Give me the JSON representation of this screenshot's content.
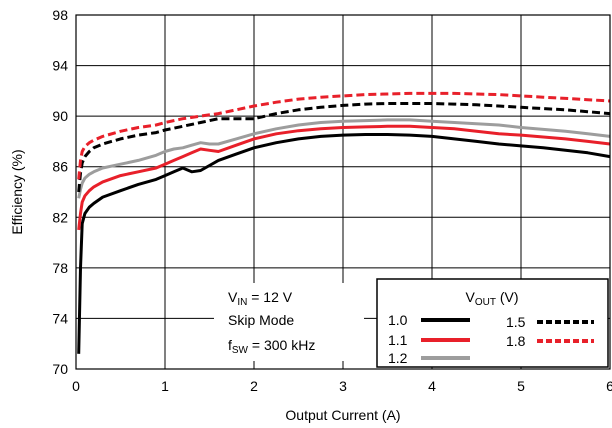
{
  "chart_data": {
    "type": "line",
    "xlabel": "Output Current (A)",
    "ylabel": "Efficiency (%)",
    "xlim": [
      0,
      6
    ],
    "ylim": [
      70,
      98
    ],
    "x_ticks": [
      "0",
      "1",
      "2",
      "3",
      "4",
      "5",
      "6"
    ],
    "y_ticks": [
      "70",
      "74",
      "78",
      "82",
      "86",
      "90",
      "94",
      "98"
    ],
    "grid": true,
    "annotation": {
      "vin": {
        "main": "V",
        "sub": "IN",
        "rest": " = 12 V"
      },
      "mode": "Skip Mode",
      "fsw": {
        "main": "f",
        "sub": "SW",
        "rest": " = 300 kHz"
      }
    },
    "legend": {
      "placement": "bottom-right",
      "title": {
        "main": "V",
        "sub": "OUT",
        "rest": " (V)"
      }
    },
    "series": [
      {
        "name": "1.0",
        "color": "#000000",
        "dash": "solid",
        "points": [
          [
            0.03,
            71.2
          ],
          [
            0.05,
            78
          ],
          [
            0.07,
            81.5
          ],
          [
            0.1,
            82.3
          ],
          [
            0.15,
            82.8
          ],
          [
            0.2,
            83.1
          ],
          [
            0.3,
            83.6
          ],
          [
            0.5,
            84.1
          ],
          [
            0.7,
            84.6
          ],
          [
            0.9,
            85.0
          ],
          [
            1.0,
            85.3
          ],
          [
            1.1,
            85.6
          ],
          [
            1.2,
            85.9
          ],
          [
            1.3,
            85.6
          ],
          [
            1.4,
            85.7
          ],
          [
            1.5,
            86.1
          ],
          [
            1.6,
            86.5
          ],
          [
            1.8,
            87.0
          ],
          [
            2.0,
            87.5
          ],
          [
            2.25,
            87.9
          ],
          [
            2.5,
            88.2
          ],
          [
            2.75,
            88.4
          ],
          [
            3.0,
            88.5
          ],
          [
            3.25,
            88.55
          ],
          [
            3.5,
            88.55
          ],
          [
            3.75,
            88.5
          ],
          [
            4.0,
            88.4
          ],
          [
            4.25,
            88.2
          ],
          [
            4.5,
            88.0
          ],
          [
            4.75,
            87.8
          ],
          [
            5.0,
            87.65
          ],
          [
            5.25,
            87.5
          ],
          [
            5.5,
            87.3
          ],
          [
            5.75,
            87.1
          ],
          [
            6.0,
            86.8
          ]
        ]
      },
      {
        "name": "1.1",
        "color": "#e8202a",
        "dash": "solid",
        "points": [
          [
            0.03,
            81
          ],
          [
            0.05,
            82.3
          ],
          [
            0.07,
            83.2
          ],
          [
            0.1,
            83.7
          ],
          [
            0.15,
            84.1
          ],
          [
            0.2,
            84.4
          ],
          [
            0.3,
            84.8
          ],
          [
            0.5,
            85.3
          ],
          [
            0.7,
            85.6
          ],
          [
            0.9,
            85.9
          ],
          [
            1.0,
            86.2
          ],
          [
            1.1,
            86.5
          ],
          [
            1.2,
            86.8
          ],
          [
            1.3,
            87.1
          ],
          [
            1.4,
            87.4
          ],
          [
            1.5,
            87.3
          ],
          [
            1.6,
            87.2
          ],
          [
            1.8,
            87.7
          ],
          [
            2.0,
            88.2
          ],
          [
            2.25,
            88.6
          ],
          [
            2.5,
            88.85
          ],
          [
            2.75,
            89.0
          ],
          [
            3.0,
            89.1
          ],
          [
            3.25,
            89.15
          ],
          [
            3.5,
            89.2
          ],
          [
            3.75,
            89.2
          ],
          [
            4.0,
            89.1
          ],
          [
            4.25,
            89.0
          ],
          [
            4.5,
            88.8
          ],
          [
            4.75,
            88.6
          ],
          [
            5.0,
            88.5
          ],
          [
            5.25,
            88.35
          ],
          [
            5.5,
            88.2
          ],
          [
            5.75,
            88.0
          ],
          [
            6.0,
            87.8
          ]
        ]
      },
      {
        "name": "1.2",
        "color": "#9d9d9d",
        "dash": "solid",
        "points": [
          [
            0.03,
            83.5
          ],
          [
            0.05,
            84.2
          ],
          [
            0.07,
            84.7
          ],
          [
            0.1,
            85.1
          ],
          [
            0.15,
            85.4
          ],
          [
            0.2,
            85.6
          ],
          [
            0.3,
            85.9
          ],
          [
            0.5,
            86.2
          ],
          [
            0.7,
            86.5
          ],
          [
            0.9,
            86.9
          ],
          [
            1.0,
            87.2
          ],
          [
            1.1,
            87.4
          ],
          [
            1.2,
            87.5
          ],
          [
            1.3,
            87.7
          ],
          [
            1.4,
            87.9
          ],
          [
            1.5,
            87.8
          ],
          [
            1.6,
            87.8
          ],
          [
            1.8,
            88.2
          ],
          [
            2.0,
            88.6
          ],
          [
            2.25,
            89.0
          ],
          [
            2.5,
            89.3
          ],
          [
            2.75,
            89.5
          ],
          [
            3.0,
            89.6
          ],
          [
            3.25,
            89.65
          ],
          [
            3.5,
            89.7
          ],
          [
            3.75,
            89.7
          ],
          [
            4.0,
            89.6
          ],
          [
            4.25,
            89.5
          ],
          [
            4.5,
            89.4
          ],
          [
            4.75,
            89.3
          ],
          [
            5.0,
            89.1
          ],
          [
            5.25,
            88.95
          ],
          [
            5.5,
            88.8
          ],
          [
            5.75,
            88.6
          ],
          [
            6.0,
            88.4
          ]
        ]
      },
      {
        "name": "1.5",
        "color": "#000000",
        "dash": "dashed",
        "points": [
          [
            0.03,
            84
          ],
          [
            0.05,
            85.5
          ],
          [
            0.07,
            86.3
          ],
          [
            0.1,
            86.8
          ],
          [
            0.15,
            87.2
          ],
          [
            0.2,
            87.5
          ],
          [
            0.3,
            87.8
          ],
          [
            0.5,
            88.2
          ],
          [
            0.7,
            88.5
          ],
          [
            0.9,
            88.7
          ],
          [
            1.0,
            88.9
          ],
          [
            1.2,
            89.2
          ],
          [
            1.4,
            89.5
          ],
          [
            1.6,
            89.8
          ],
          [
            1.8,
            89.8
          ],
          [
            2.0,
            89.8
          ],
          [
            2.25,
            90.2
          ],
          [
            2.5,
            90.5
          ],
          [
            2.75,
            90.7
          ],
          [
            3.0,
            90.85
          ],
          [
            3.25,
            90.95
          ],
          [
            3.5,
            91.0
          ],
          [
            3.75,
            91.0
          ],
          [
            4.0,
            91.0
          ],
          [
            4.25,
            90.95
          ],
          [
            4.5,
            90.9
          ],
          [
            4.75,
            90.8
          ],
          [
            5.0,
            90.7
          ],
          [
            5.25,
            90.6
          ],
          [
            5.5,
            90.5
          ],
          [
            5.75,
            90.35
          ],
          [
            6.0,
            90.2
          ]
        ]
      },
      {
        "name": "1.8",
        "color": "#e8202a",
        "dash": "dashed",
        "points": [
          [
            0.03,
            85
          ],
          [
            0.05,
            86.5
          ],
          [
            0.07,
            87.2
          ],
          [
            0.1,
            87.6
          ],
          [
            0.15,
            87.9
          ],
          [
            0.2,
            88.1
          ],
          [
            0.3,
            88.4
          ],
          [
            0.5,
            88.8
          ],
          [
            0.7,
            89.1
          ],
          [
            0.9,
            89.3
          ],
          [
            1.0,
            89.5
          ],
          [
            1.2,
            89.8
          ],
          [
            1.4,
            90.0
          ],
          [
            1.6,
            90.2
          ],
          [
            1.8,
            90.5
          ],
          [
            2.0,
            90.8
          ],
          [
            2.25,
            91.1
          ],
          [
            2.5,
            91.35
          ],
          [
            2.75,
            91.5
          ],
          [
            3.0,
            91.6
          ],
          [
            3.25,
            91.7
          ],
          [
            3.5,
            91.75
          ],
          [
            3.75,
            91.8
          ],
          [
            4.0,
            91.8
          ],
          [
            4.25,
            91.8
          ],
          [
            4.5,
            91.75
          ],
          [
            4.75,
            91.7
          ],
          [
            5.0,
            91.6
          ],
          [
            5.25,
            91.5
          ],
          [
            5.5,
            91.4
          ],
          [
            5.75,
            91.3
          ],
          [
            6.0,
            91.2
          ]
        ]
      }
    ]
  }
}
